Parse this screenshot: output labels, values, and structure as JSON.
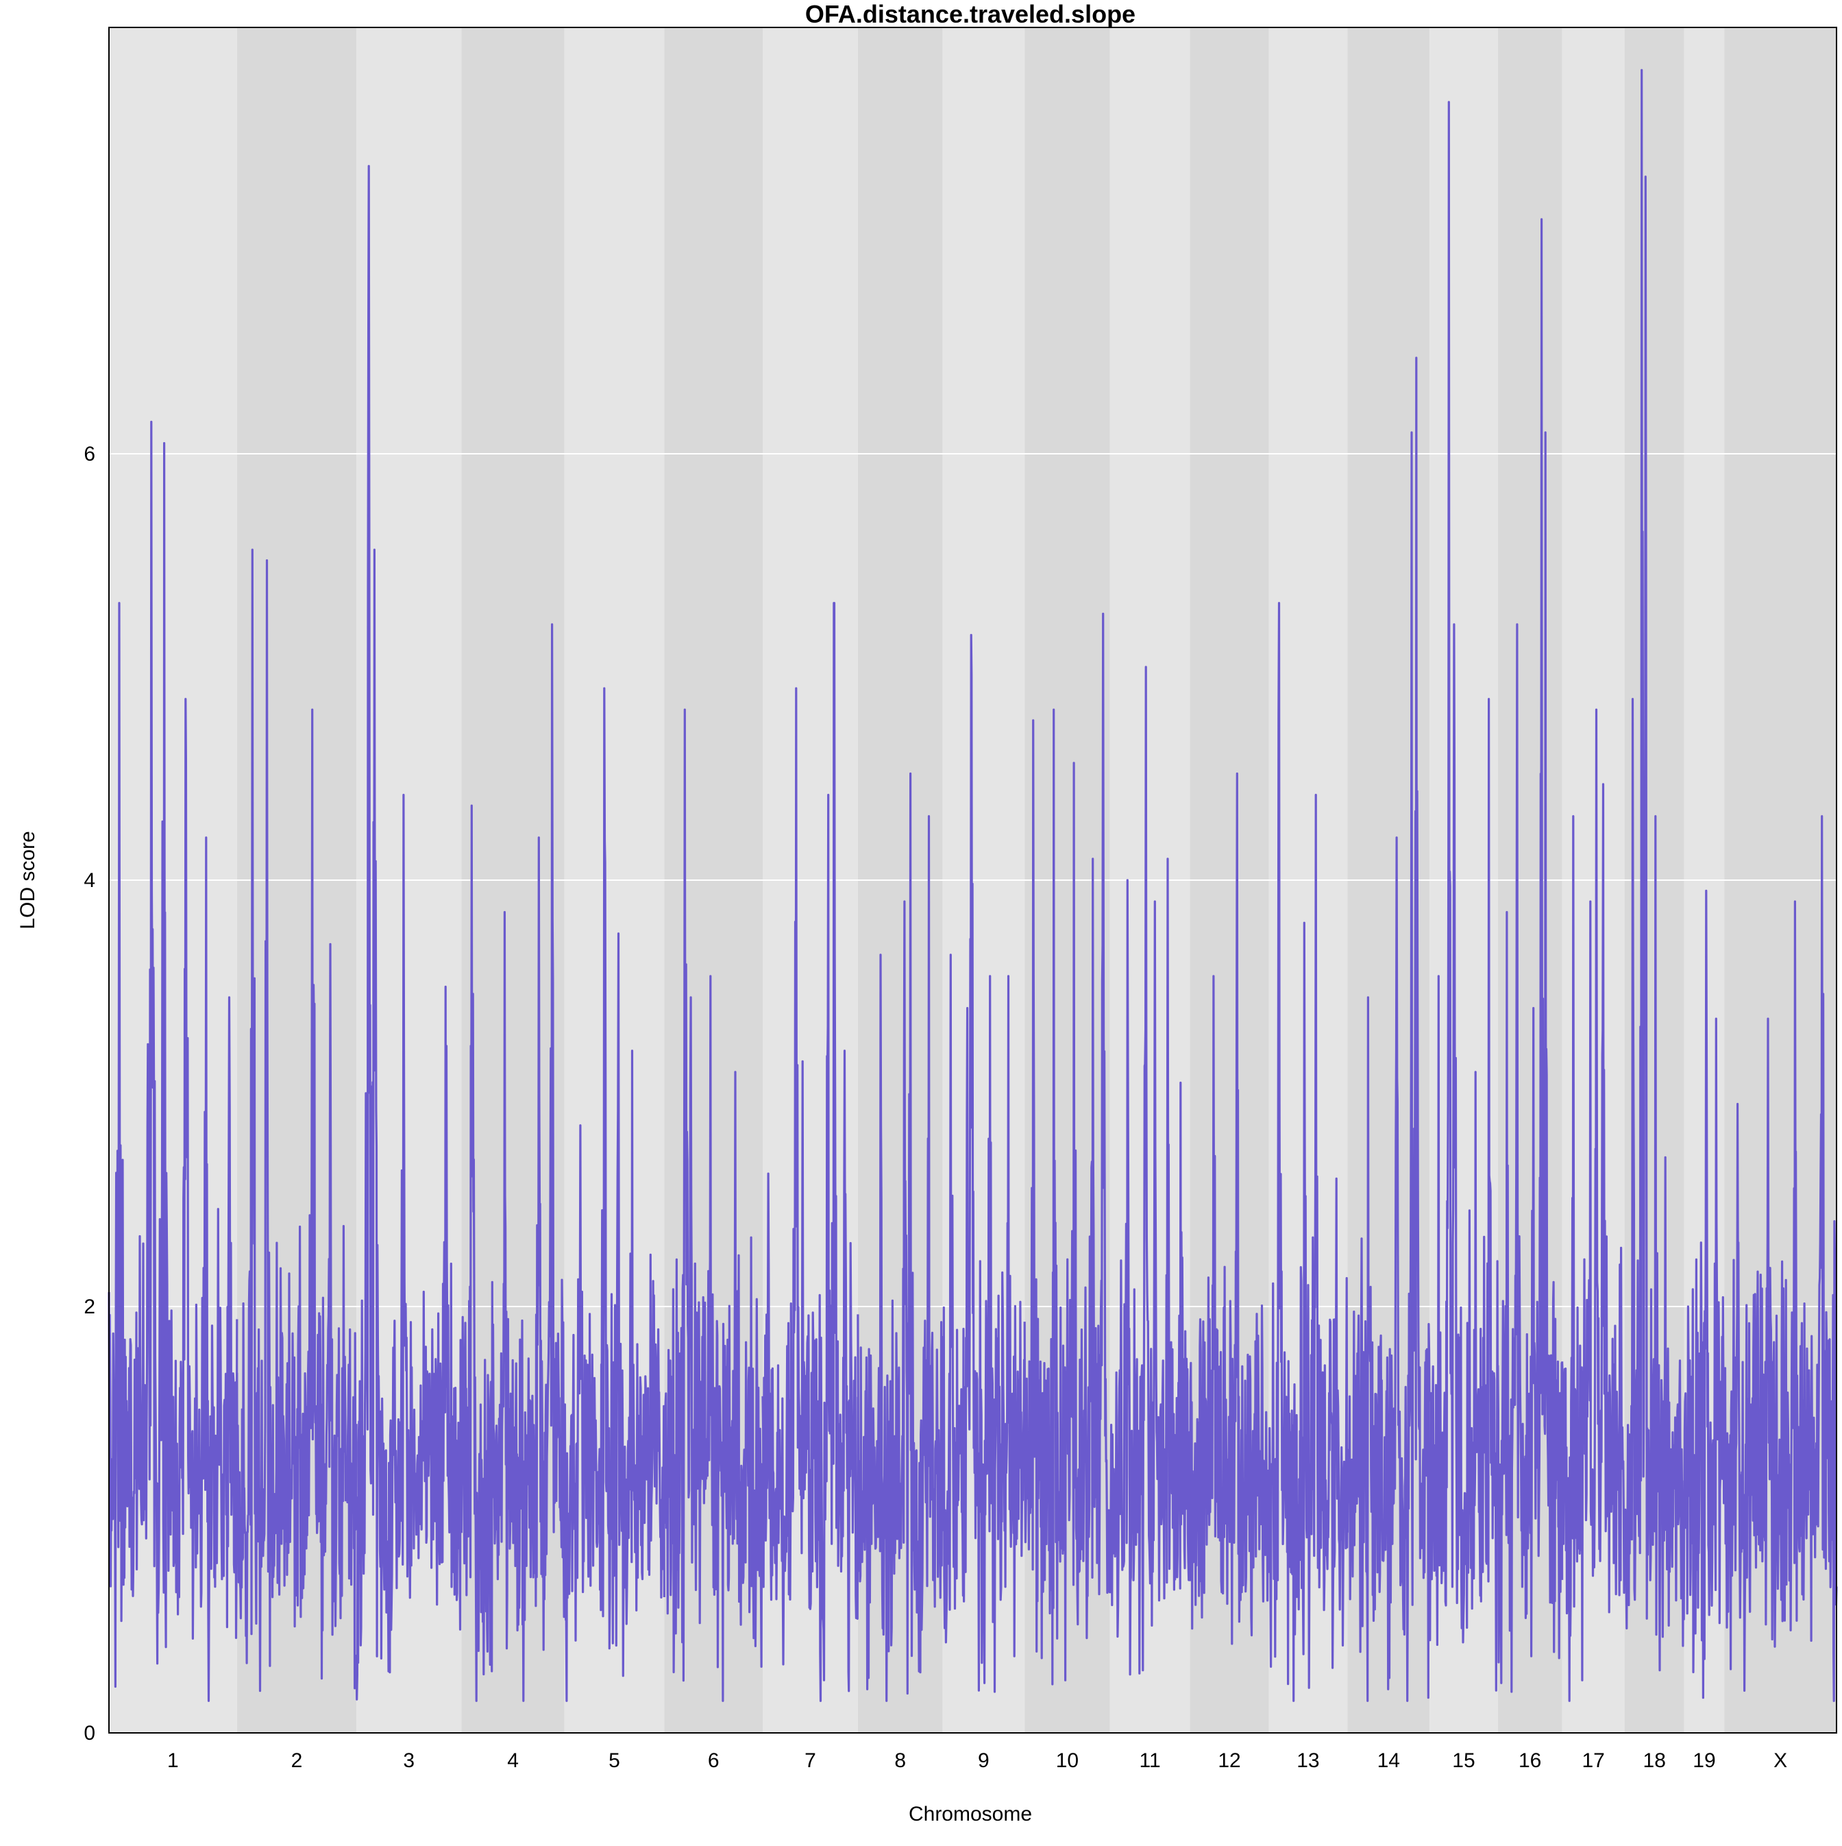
{
  "chart_data": {
    "type": "line",
    "title": "OFA.distance.traveled.slope",
    "xlabel": "Chromosome",
    "ylabel": "LOD score",
    "ylim": [
      0,
      8
    ],
    "yticks": [
      0,
      2,
      4,
      6
    ],
    "grid": "horizontal",
    "line_color": "#6a5acd",
    "band_colors": [
      "#e5e5e5",
      "#d9d9d9"
    ],
    "chromosomes": [
      {
        "label": "1",
        "length": 195,
        "peaks": [
          {
            "pos": 0.08,
            "lod": 5.3
          },
          {
            "pos": 0.33,
            "lod": 6.15
          },
          {
            "pos": 0.43,
            "lod": 6.05
          },
          {
            "pos": 0.6,
            "lod": 4.85
          },
          {
            "pos": 0.76,
            "lod": 4.2
          },
          {
            "pos": 0.94,
            "lod": 3.45
          }
        ]
      },
      {
        "label": "2",
        "length": 182,
        "peaks": [
          {
            "pos": 0.13,
            "lod": 5.55
          },
          {
            "pos": 0.25,
            "lod": 5.5
          },
          {
            "pos": 0.63,
            "lod": 4.8
          },
          {
            "pos": 0.78,
            "lod": 3.7
          }
        ]
      },
      {
        "label": "3",
        "length": 160,
        "peaks": [
          {
            "pos": 0.12,
            "lod": 7.35
          },
          {
            "pos": 0.17,
            "lod": 5.55
          },
          {
            "pos": 0.45,
            "lod": 4.4
          },
          {
            "pos": 0.85,
            "lod": 3.5
          }
        ]
      },
      {
        "label": "4",
        "length": 157,
        "peaks": [
          {
            "pos": 0.1,
            "lod": 4.35
          },
          {
            "pos": 0.42,
            "lod": 3.85
          },
          {
            "pos": 0.75,
            "lod": 4.2
          },
          {
            "pos": 0.88,
            "lod": 5.2
          }
        ]
      },
      {
        "label": "5",
        "length": 152,
        "peaks": [
          {
            "pos": 0.16,
            "lod": 2.85
          },
          {
            "pos": 0.4,
            "lod": 4.9
          },
          {
            "pos": 0.54,
            "lod": 3.75
          },
          {
            "pos": 0.68,
            "lod": 3.2
          }
        ]
      },
      {
        "label": "6",
        "length": 150,
        "peaks": [
          {
            "pos": 0.21,
            "lod": 4.8
          },
          {
            "pos": 0.27,
            "lod": 3.45
          },
          {
            "pos": 0.47,
            "lod": 3.55
          },
          {
            "pos": 0.72,
            "lod": 3.1
          }
        ]
      },
      {
        "label": "7",
        "length": 145,
        "peaks": [
          {
            "pos": 0.35,
            "lod": 4.9
          },
          {
            "pos": 0.42,
            "lod": 3.15
          },
          {
            "pos": 0.69,
            "lod": 4.4
          },
          {
            "pos": 0.75,
            "lod": 5.3
          },
          {
            "pos": 0.86,
            "lod": 3.2
          }
        ]
      },
      {
        "label": "8",
        "length": 129,
        "peaks": [
          {
            "pos": 0.27,
            "lod": 3.65
          },
          {
            "pos": 0.55,
            "lod": 3.9
          },
          {
            "pos": 0.62,
            "lod": 4.5
          },
          {
            "pos": 0.84,
            "lod": 4.3
          }
        ]
      },
      {
        "label": "9",
        "length": 125,
        "peaks": [
          {
            "pos": 0.1,
            "lod": 3.65
          },
          {
            "pos": 0.3,
            "lod": 3.4
          },
          {
            "pos": 0.35,
            "lod": 5.15
          },
          {
            "pos": 0.58,
            "lod": 3.55
          },
          {
            "pos": 0.8,
            "lod": 3.55
          }
        ]
      },
      {
        "label": "10",
        "length": 130,
        "peaks": [
          {
            "pos": 0.1,
            "lod": 4.75
          },
          {
            "pos": 0.34,
            "lod": 4.8
          },
          {
            "pos": 0.58,
            "lod": 4.55
          },
          {
            "pos": 0.8,
            "lod": 4.1
          },
          {
            "pos": 0.92,
            "lod": 5.25
          }
        ]
      },
      {
        "label": "11",
        "length": 122,
        "peaks": [
          {
            "pos": 0.22,
            "lod": 4.0
          },
          {
            "pos": 0.45,
            "lod": 5.0
          },
          {
            "pos": 0.56,
            "lod": 3.9
          },
          {
            "pos": 0.72,
            "lod": 4.1
          },
          {
            "pos": 0.88,
            "lod": 3.05
          }
        ]
      },
      {
        "label": "12",
        "length": 120,
        "peaks": [
          {
            "pos": 0.3,
            "lod": 3.55
          },
          {
            "pos": 0.6,
            "lod": 4.5
          },
          {
            "pos": 0.84,
            "lod": 1.55
          }
        ]
      },
      {
        "label": "13",
        "length": 120,
        "peaks": [
          {
            "pos": 0.13,
            "lod": 5.3
          },
          {
            "pos": 0.45,
            "lod": 3.8
          },
          {
            "pos": 0.6,
            "lod": 4.4
          },
          {
            "pos": 0.86,
            "lod": 2.6
          }
        ]
      },
      {
        "label": "14",
        "length": 125,
        "peaks": [
          {
            "pos": 0.25,
            "lod": 3.45
          },
          {
            "pos": 0.6,
            "lod": 4.2
          },
          {
            "pos": 0.78,
            "lod": 6.1
          },
          {
            "pos": 0.84,
            "lod": 6.45
          }
        ]
      },
      {
        "label": "15",
        "length": 104,
        "peaks": [
          {
            "pos": 0.13,
            "lod": 3.55
          },
          {
            "pos": 0.28,
            "lod": 7.65
          },
          {
            "pos": 0.36,
            "lod": 5.2
          },
          {
            "pos": 0.67,
            "lod": 3.1
          },
          {
            "pos": 0.87,
            "lod": 4.85
          }
        ]
      },
      {
        "label": "16",
        "length": 98,
        "peaks": [
          {
            "pos": 0.14,
            "lod": 3.85
          },
          {
            "pos": 0.3,
            "lod": 5.2
          },
          {
            "pos": 0.55,
            "lod": 3.4
          },
          {
            "pos": 0.68,
            "lod": 7.1
          },
          {
            "pos": 0.74,
            "lod": 6.1
          }
        ]
      },
      {
        "label": "17",
        "length": 95,
        "peaks": [
          {
            "pos": 0.18,
            "lod": 4.3
          },
          {
            "pos": 0.45,
            "lod": 3.9
          },
          {
            "pos": 0.55,
            "lod": 4.8
          },
          {
            "pos": 0.66,
            "lod": 4.45
          },
          {
            "pos": 0.88,
            "lod": 1.6
          }
        ]
      },
      {
        "label": "18",
        "length": 91,
        "peaks": [
          {
            "pos": 0.14,
            "lod": 4.85
          },
          {
            "pos": 0.29,
            "lod": 7.8
          },
          {
            "pos": 0.35,
            "lod": 7.3
          },
          {
            "pos": 0.52,
            "lod": 4.3
          },
          {
            "pos": 0.68,
            "lod": 2.7
          }
        ]
      },
      {
        "label": "19",
        "length": 61,
        "peaks": [
          {
            "pos": 0.1,
            "lod": 2.0
          },
          {
            "pos": 0.42,
            "lod": 2.3
          },
          {
            "pos": 0.55,
            "lod": 3.95
          },
          {
            "pos": 0.8,
            "lod": 3.35
          }
        ]
      },
      {
        "label": "X",
        "length": 171,
        "peaks": [
          {
            "pos": 0.12,
            "lod": 2.95
          },
          {
            "pos": 0.39,
            "lod": 3.35
          },
          {
            "pos": 0.63,
            "lod": 3.9
          },
          {
            "pos": 0.87,
            "lod": 4.3
          },
          {
            "pos": 0.98,
            "lod": 2.4
          }
        ]
      }
    ]
  }
}
